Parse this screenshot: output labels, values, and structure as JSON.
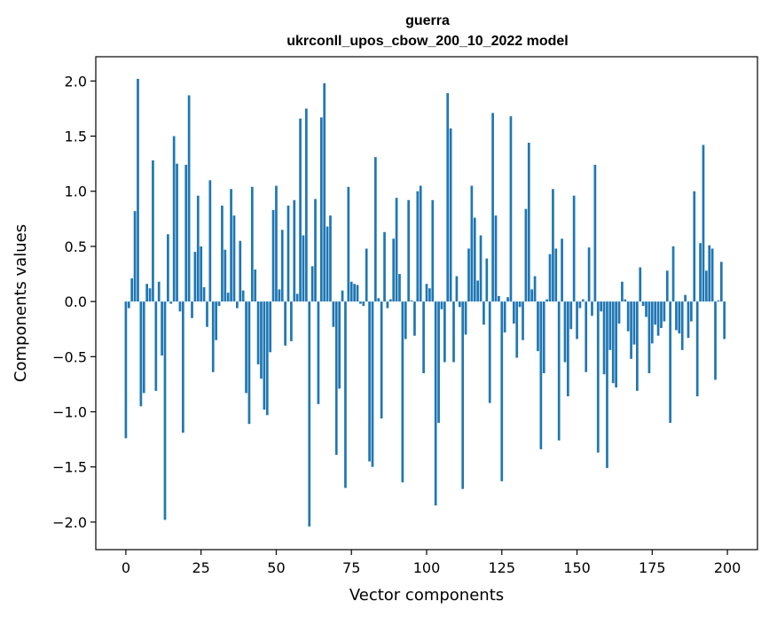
{
  "chart_data": {
    "type": "bar",
    "title": "guerra",
    "subtitle": "ukrconll_upos_cbow_200_10_2022 model",
    "xlabel": "Vector components",
    "ylabel": "Components values",
    "xlim": [
      -10,
      210
    ],
    "ylim": [
      -2.25,
      2.22
    ],
    "xticks": [
      0,
      25,
      50,
      75,
      100,
      125,
      150,
      175,
      200
    ],
    "xtick_labels": [
      "0",
      "25",
      "50",
      "75",
      "100",
      "125",
      "150",
      "175",
      "200"
    ],
    "yticks": [
      2.0,
      1.5,
      1.0,
      0.5,
      0.0,
      -0.5,
      -1.0,
      -1.5,
      -2.0
    ],
    "ytick_labels": [
      "2.0",
      "1.5",
      "1.0",
      "0.5",
      "0.0",
      "−0.5",
      "−1.0",
      "−1.5",
      "−2.0"
    ],
    "grid": false,
    "bar_color": "#1f77b4",
    "x": [
      0,
      1,
      2,
      3,
      4,
      5,
      6,
      7,
      8,
      9,
      10,
      11,
      12,
      13,
      14,
      15,
      16,
      17,
      18,
      19,
      20,
      21,
      22,
      23,
      24,
      25,
      26,
      27,
      28,
      29,
      30,
      31,
      32,
      33,
      34,
      35,
      36,
      37,
      38,
      39,
      40,
      41,
      42,
      43,
      44,
      45,
      46,
      47,
      48,
      49,
      50,
      51,
      52,
      53,
      54,
      55,
      56,
      57,
      58,
      59,
      60,
      61,
      62,
      63,
      64,
      65,
      66,
      67,
      68,
      69,
      70,
      71,
      72,
      73,
      74,
      75,
      76,
      77,
      78,
      79,
      80,
      81,
      82,
      83,
      84,
      85,
      86,
      87,
      88,
      89,
      90,
      91,
      92,
      93,
      94,
      95,
      96,
      97,
      98,
      99,
      100,
      101,
      102,
      103,
      104,
      105,
      106,
      107,
      108,
      109,
      110,
      111,
      112,
      113,
      114,
      115,
      116,
      117,
      118,
      119,
      120,
      121,
      122,
      123,
      124,
      125,
      126,
      127,
      128,
      129,
      130,
      131,
      132,
      133,
      134,
      135,
      136,
      137,
      138,
      139,
      140,
      141,
      142,
      143,
      144,
      145,
      146,
      147,
      148,
      149,
      150,
      151,
      152,
      153,
      154,
      155,
      156,
      157,
      158,
      159,
      160,
      161,
      162,
      163,
      164,
      165,
      166,
      167,
      168,
      169,
      170,
      171,
      172,
      173,
      174,
      175,
      176,
      177,
      178,
      179,
      180,
      181,
      182,
      183,
      184,
      185,
      186,
      187,
      188,
      189,
      190,
      191,
      192,
      193,
      194,
      195,
      196,
      197,
      198,
      199
    ],
    "values": [
      -1.24,
      -0.06,
      0.21,
      0.82,
      2.02,
      -0.95,
      -0.83,
      0.16,
      0.12,
      1.28,
      -0.81,
      0.18,
      -0.49,
      -1.98,
      0.61,
      -0.02,
      1.5,
      1.25,
      -0.09,
      -1.19,
      1.24,
      1.87,
      -0.15,
      0.45,
      0.96,
      0.5,
      0.13,
      -0.23,
      1.1,
      -0.64,
      -0.35,
      -0.04,
      0.87,
      0.47,
      0.08,
      1.02,
      0.78,
      -0.06,
      0.55,
      0.1,
      -0.83,
      -1.11,
      1.04,
      0.29,
      -0.57,
      -0.7,
      -0.98,
      -1.03,
      -0.46,
      0.83,
      1.05,
      0.11,
      0.65,
      -0.4,
      0.87,
      -0.36,
      0.92,
      0.07,
      1.66,
      0.6,
      1.75,
      -2.04,
      0.32,
      0.93,
      -0.93,
      1.67,
      1.98,
      0.68,
      0.78,
      -0.23,
      -1.39,
      -0.79,
      0.1,
      -1.69,
      1.04,
      0.18,
      0.16,
      0.15,
      -0.02,
      -0.04,
      0.48,
      -1.45,
      -1.5,
      1.31,
      0.03,
      -1.06,
      0.63,
      -0.06,
      0.02,
      0.57,
      0.94,
      0.25,
      -1.64,
      -0.34,
      0.92,
      0.01,
      -0.31,
      1.0,
      1.05,
      -0.65,
      0.16,
      0.12,
      0.92,
      -1.85,
      -1.1,
      -0.07,
      -0.55,
      1.89,
      1.57,
      -0.55,
      0.23,
      -0.05,
      -1.7,
      -0.3,
      0.48,
      1.05,
      0.76,
      0.19,
      0.6,
      -0.21,
      0.39,
      -0.92,
      1.71,
      0.78,
      0.05,
      -1.63,
      -0.28,
      0.04,
      1.68,
      -0.2,
      -0.51,
      -0.05,
      -0.35,
      0.84,
      1.44,
      0.11,
      0.23,
      -0.45,
      -1.34,
      -0.65,
      0.02,
      0.43,
      1.02,
      0.48,
      -1.26,
      0.57,
      -0.55,
      -0.86,
      -0.25,
      0.96,
      -0.34,
      -0.06,
      0.02,
      -0.64,
      0.49,
      -0.13,
      1.24,
      -1.37,
      -0.09,
      -0.66,
      -1.51,
      -0.44,
      -0.74,
      -0.78,
      -0.2,
      0.18,
      0.02,
      -0.27,
      -0.52,
      -0.39,
      -0.81,
      0.31,
      -0.04,
      -0.14,
      -0.65,
      -0.38,
      -0.21,
      -0.31,
      -0.24,
      -0.18,
      0.28,
      -1.1,
      0.5,
      -0.26,
      -0.29,
      -0.44,
      0.06,
      -0.33,
      -0.18,
      1.0,
      -0.86,
      0.53,
      1.42,
      0.28,
      0.51,
      0.48,
      -0.71,
      0.01,
      0.36,
      -0.34
    ]
  }
}
